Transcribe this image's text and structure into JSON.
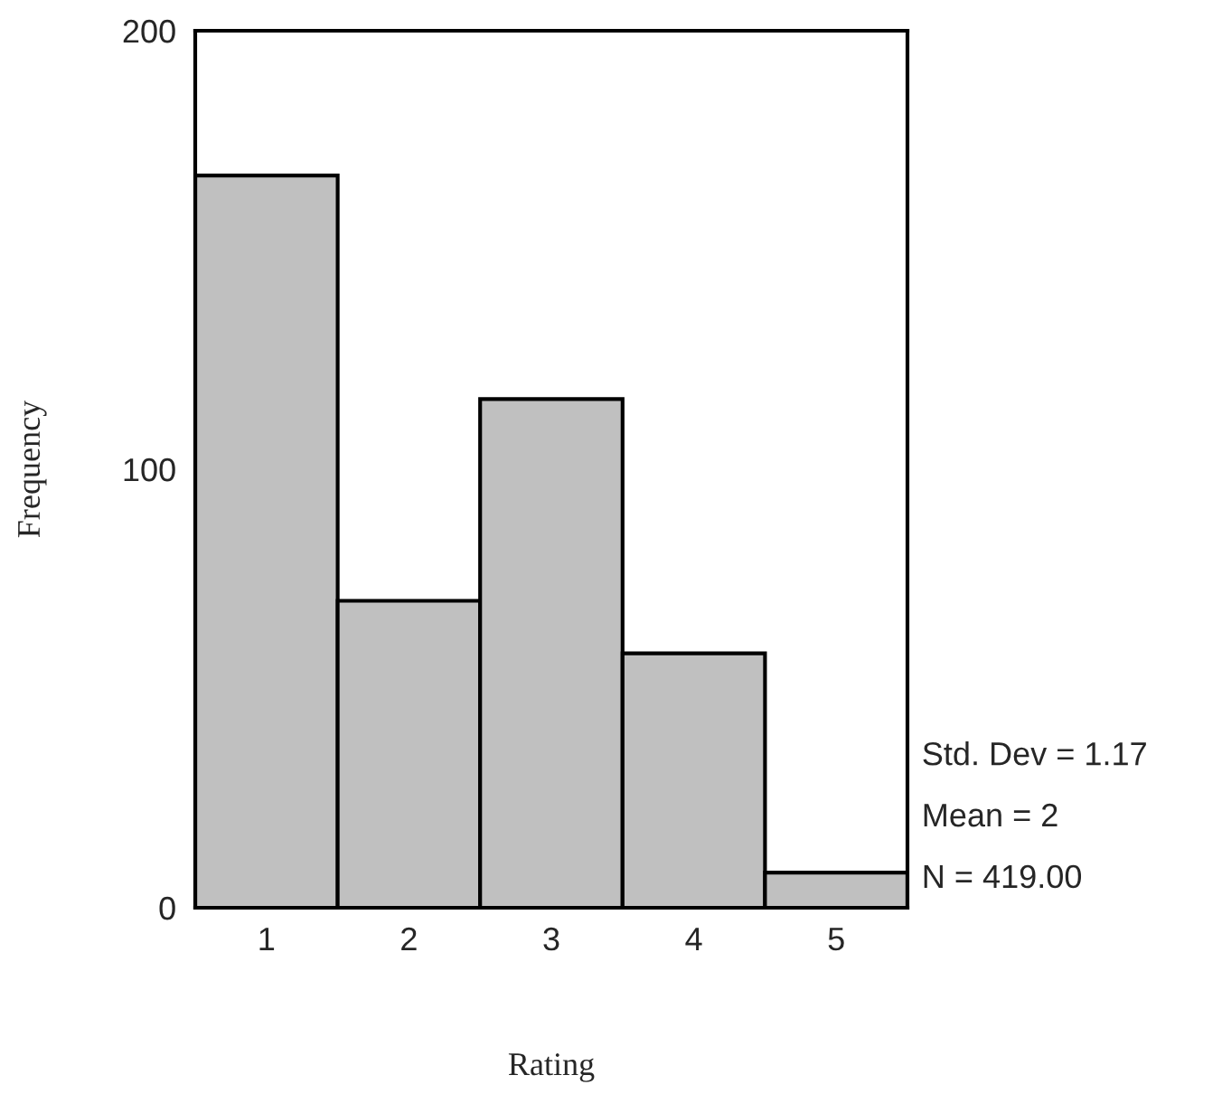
{
  "chart_data": {
    "type": "histogram",
    "xlabel": "Rating",
    "ylabel": "Frequency",
    "bins": [
      0.5,
      1.5,
      2.5,
      3.5,
      4.5,
      5.5
    ],
    "values": [
      167,
      70,
      116,
      58,
      8
    ],
    "color": "#c0c0c0",
    "xlim": [
      0.5,
      5.5
    ],
    "xticks": [
      1,
      2,
      3,
      4,
      5
    ],
    "ylim": [
      0,
      200
    ],
    "yticks": [
      0,
      100,
      200
    ],
    "grid": false,
    "legend": false,
    "annotations": [
      "Std. Dev = 1.17",
      "Mean = 2",
      "N = 419.00"
    ]
  }
}
